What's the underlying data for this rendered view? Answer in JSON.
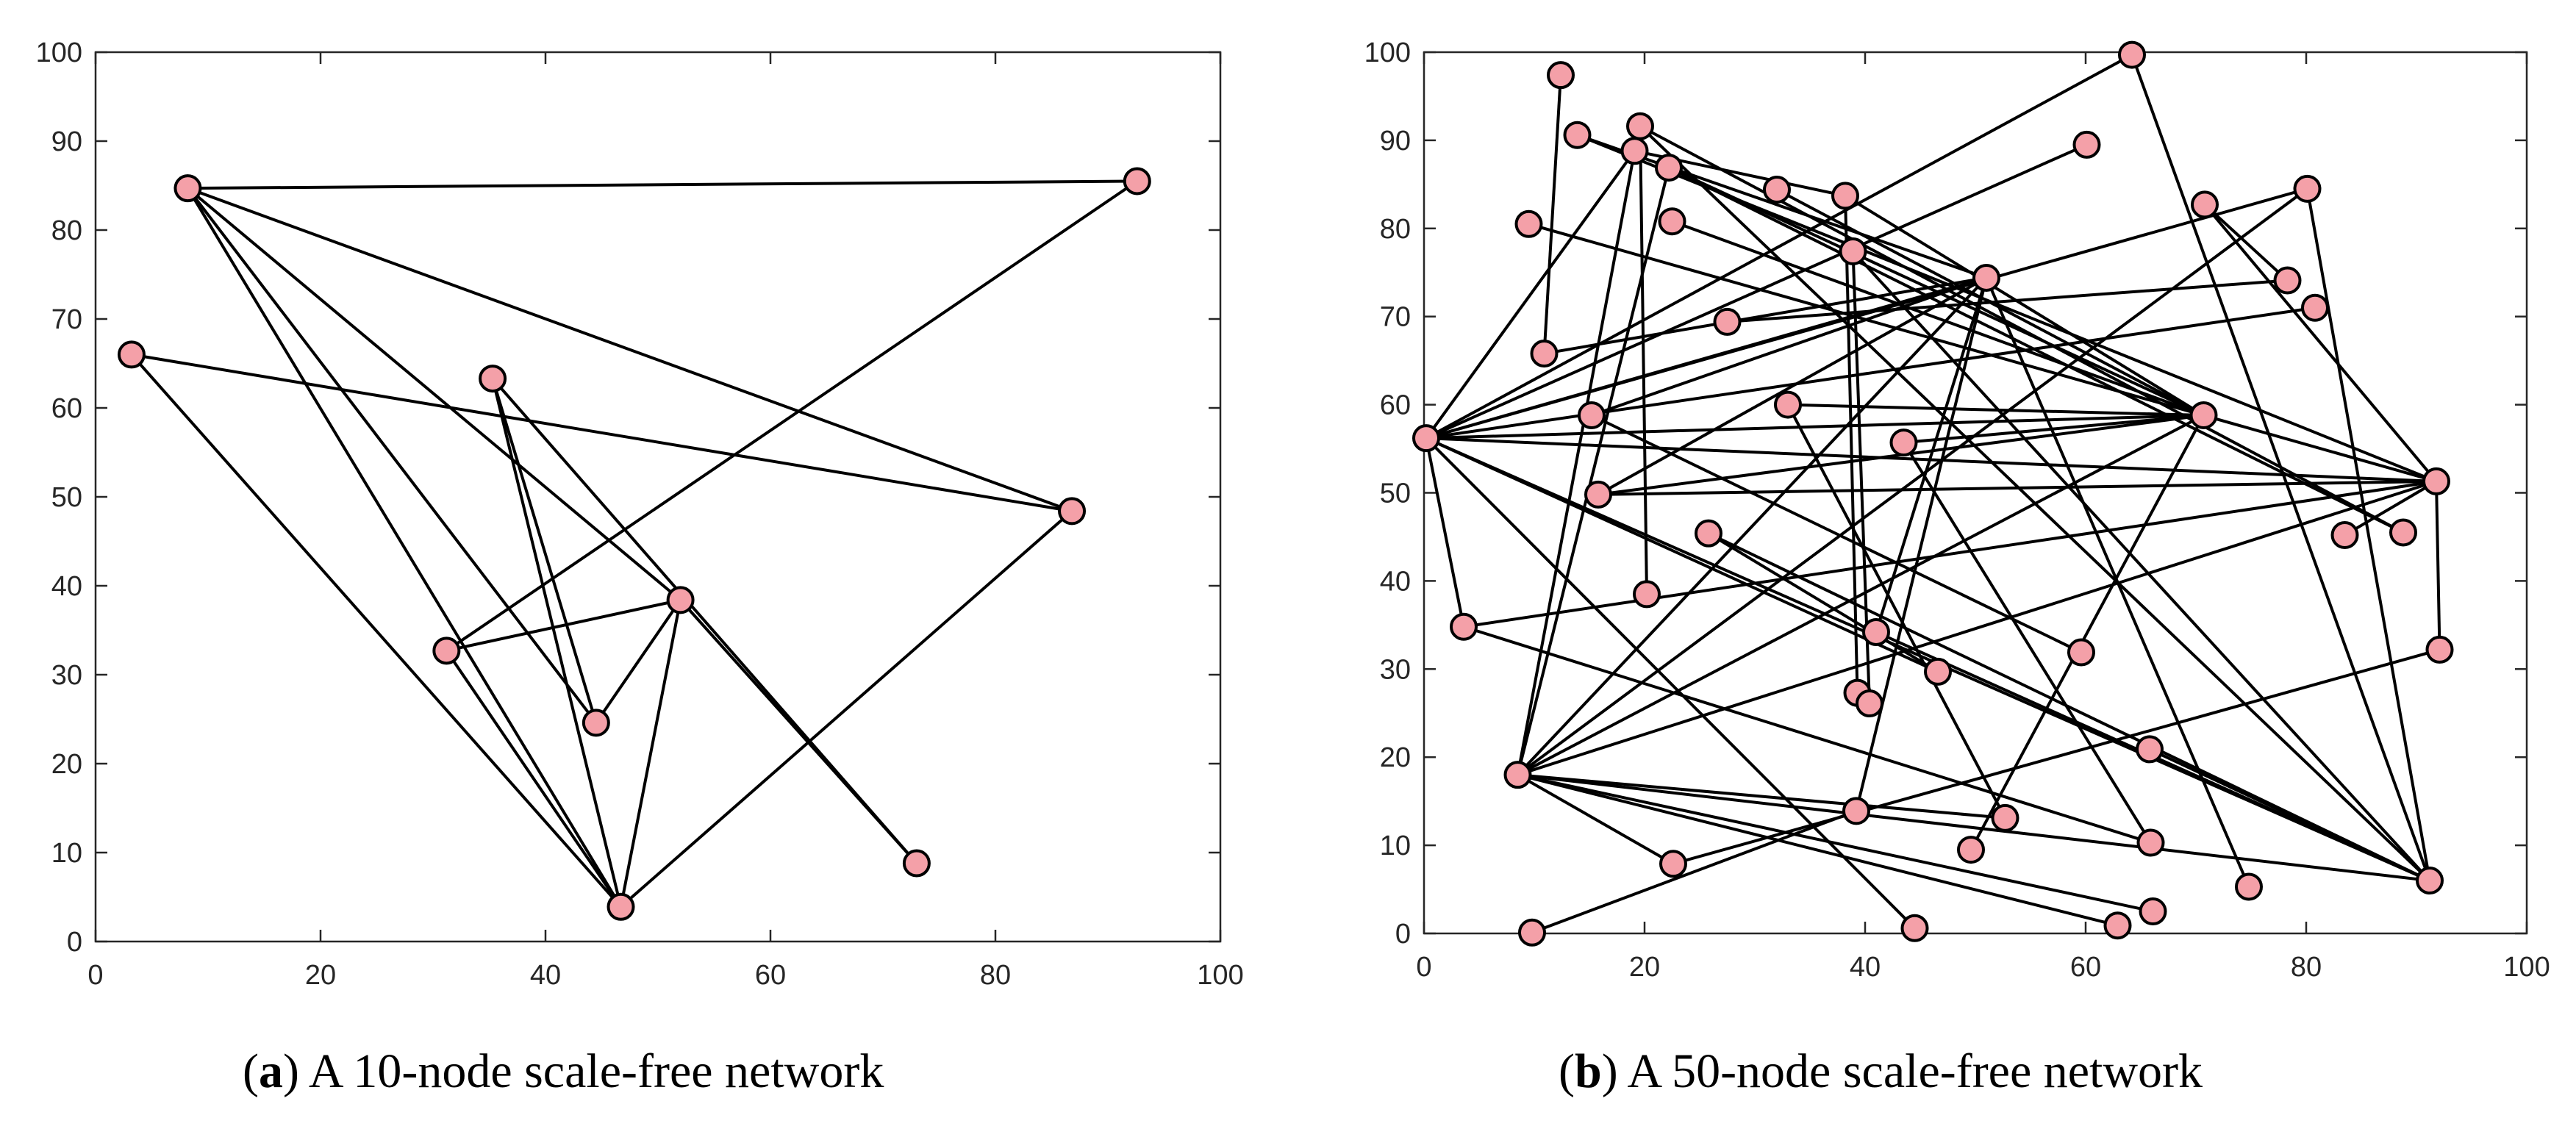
{
  "colors": {
    "node_fill": "#f4a0a8",
    "node_stroke": "#000000",
    "edge": "#000000",
    "axis": "#262626"
  },
  "chart_data": [
    {
      "type": "scatter",
      "title": "",
      "xlabel": "",
      "ylabel": "",
      "xlim": [
        0,
        100
      ],
      "ylim": [
        0,
        100
      ],
      "xticks": [
        0,
        20,
        40,
        60,
        80,
        100
      ],
      "yticks": [
        0,
        10,
        20,
        30,
        40,
        50,
        60,
        70,
        80,
        90,
        100
      ],
      "grid": false,
      "caption": {
        "letter": "a",
        "text": "A 10-node scale-free network"
      },
      "nodes": [
        {
          "x": 3.2,
          "y": 66.0
        },
        {
          "x": 8.2,
          "y": 84.7
        },
        {
          "x": 35.3,
          "y": 63.3
        },
        {
          "x": 31.2,
          "y": 32.7
        },
        {
          "x": 44.5,
          "y": 24.6
        },
        {
          "x": 52.0,
          "y": 38.4
        },
        {
          "x": 46.7,
          "y": 3.9
        },
        {
          "x": 73.0,
          "y": 8.8
        },
        {
          "x": 86.8,
          "y": 48.4
        },
        {
          "x": 92.6,
          "y": 85.5
        }
      ],
      "edges": [
        [
          1,
          9
        ],
        [
          1,
          8
        ],
        [
          1,
          5
        ],
        [
          1,
          4
        ],
        [
          1,
          6
        ],
        [
          0,
          8
        ],
        [
          0,
          6
        ],
        [
          2,
          4
        ],
        [
          2,
          7
        ],
        [
          2,
          6
        ],
        [
          3,
          5
        ],
        [
          3,
          9
        ],
        [
          3,
          6
        ],
        [
          4,
          5
        ],
        [
          5,
          6
        ],
        [
          5,
          7
        ],
        [
          6,
          8
        ]
      ]
    },
    {
      "type": "scatter",
      "title": "",
      "xlabel": "",
      "ylabel": "",
      "xlim": [
        0,
        100
      ],
      "ylim": [
        0,
        100
      ],
      "xticks": [
        0,
        20,
        40,
        60,
        80,
        100
      ],
      "yticks": [
        0,
        10,
        20,
        30,
        40,
        50,
        60,
        70,
        80,
        90,
        100
      ],
      "grid": false,
      "caption": {
        "letter": "b",
        "text": "A 50-node scale-free network"
      },
      "nodes": [
        {
          "x": 0.2,
          "y": 56.2
        },
        {
          "x": 8.5,
          "y": 18.0
        },
        {
          "x": 51.0,
          "y": 74.4
        },
        {
          "x": 70.7,
          "y": 58.8
        },
        {
          "x": 91.2,
          "y": 6.0
        },
        {
          "x": 91.8,
          "y": 51.3
        },
        {
          "x": 12.4,
          "y": 97.4
        },
        {
          "x": 19.6,
          "y": 91.6
        },
        {
          "x": 13.9,
          "y": 90.6
        },
        {
          "x": 19.1,
          "y": 88.8
        },
        {
          "x": 22.2,
          "y": 86.9
        },
        {
          "x": 9.5,
          "y": 80.5
        },
        {
          "x": 10.9,
          "y": 65.8
        },
        {
          "x": 22.5,
          "y": 80.8
        },
        {
          "x": 32.0,
          "y": 84.4
        },
        {
          "x": 38.2,
          "y": 83.7
        },
        {
          "x": 38.9,
          "y": 77.4
        },
        {
          "x": 27.5,
          "y": 69.4
        },
        {
          "x": 15.2,
          "y": 58.8
        },
        {
          "x": 33.0,
          "y": 60.0
        },
        {
          "x": 15.8,
          "y": 49.8
        },
        {
          "x": 43.5,
          "y": 55.7
        },
        {
          "x": 25.8,
          "y": 45.4
        },
        {
          "x": 20.2,
          "y": 38.5
        },
        {
          "x": 3.6,
          "y": 34.8
        },
        {
          "x": 41.0,
          "y": 34.2
        },
        {
          "x": 46.6,
          "y": 29.7
        },
        {
          "x": 39.3,
          "y": 27.3
        },
        {
          "x": 40.4,
          "y": 26.1
        },
        {
          "x": 59.6,
          "y": 31.9
        },
        {
          "x": 65.8,
          "y": 20.9
        },
        {
          "x": 64.2,
          "y": 99.7
        },
        {
          "x": 60.1,
          "y": 89.5
        },
        {
          "x": 70.8,
          "y": 82.7
        },
        {
          "x": 80.1,
          "y": 84.5
        },
        {
          "x": 78.3,
          "y": 74.1
        },
        {
          "x": 80.8,
          "y": 71.0
        },
        {
          "x": 83.5,
          "y": 45.2
        },
        {
          "x": 88.8,
          "y": 45.5
        },
        {
          "x": 92.1,
          "y": 32.2
        },
        {
          "x": 39.2,
          "y": 13.9
        },
        {
          "x": 52.7,
          "y": 13.1
        },
        {
          "x": 49.6,
          "y": 9.5
        },
        {
          "x": 65.9,
          "y": 10.3
        },
        {
          "x": 74.8,
          "y": 5.3
        },
        {
          "x": 22.6,
          "y": 7.9
        },
        {
          "x": 66.1,
          "y": 2.5
        },
        {
          "x": 62.9,
          "y": 0.9
        },
        {
          "x": 44.5,
          "y": 0.6
        },
        {
          "x": 9.8,
          "y": 0.1
        }
      ],
      "edges": [
        [
          0,
          31
        ],
        [
          0,
          32
        ],
        [
          0,
          34
        ],
        [
          0,
          3
        ],
        [
          0,
          5
        ],
        [
          0,
          4
        ],
        [
          0,
          26
        ],
        [
          0,
          24
        ],
        [
          0,
          9
        ],
        [
          0,
          48
        ],
        [
          0,
          36
        ],
        [
          0,
          2
        ],
        [
          1,
          9
        ],
        [
          1,
          10
        ],
        [
          1,
          2
        ],
        [
          1,
          3
        ],
        [
          1,
          34
        ],
        [
          1,
          5
        ],
        [
          1,
          4
        ],
        [
          1,
          46
        ],
        [
          1,
          47
        ],
        [
          1,
          41
        ],
        [
          1,
          45
        ],
        [
          2,
          8
        ],
        [
          2,
          18
        ],
        [
          2,
          12
        ],
        [
          2,
          25
        ],
        [
          2,
          44
        ],
        [
          2,
          20
        ],
        [
          2,
          40
        ],
        [
          3,
          19
        ],
        [
          3,
          20
        ],
        [
          3,
          21
        ],
        [
          3,
          42
        ],
        [
          3,
          10
        ],
        [
          3,
          13
        ],
        [
          3,
          15
        ],
        [
          3,
          14
        ],
        [
          4,
          7
        ],
        [
          4,
          31
        ],
        [
          4,
          34
        ],
        [
          4,
          25
        ],
        [
          4,
          22
        ],
        [
          4,
          16
        ],
        [
          4,
          30
        ],
        [
          5,
          20
        ],
        [
          5,
          37
        ],
        [
          5,
          24
        ],
        [
          5,
          33
        ],
        [
          5,
          11
        ],
        [
          5,
          8
        ],
        [
          5,
          39
        ],
        [
          6,
          12
        ],
        [
          7,
          23
        ],
        [
          7,
          38
        ],
        [
          9,
          15
        ],
        [
          16,
          28
        ],
        [
          15,
          27
        ],
        [
          17,
          35
        ],
        [
          19,
          41
        ],
        [
          21,
          43
        ],
        [
          29,
          18
        ],
        [
          40,
          49
        ],
        [
          45,
          39
        ],
        [
          43,
          24
        ],
        [
          26,
          22
        ],
        [
          35,
          33
        ],
        [
          38,
          10
        ]
      ]
    }
  ]
}
